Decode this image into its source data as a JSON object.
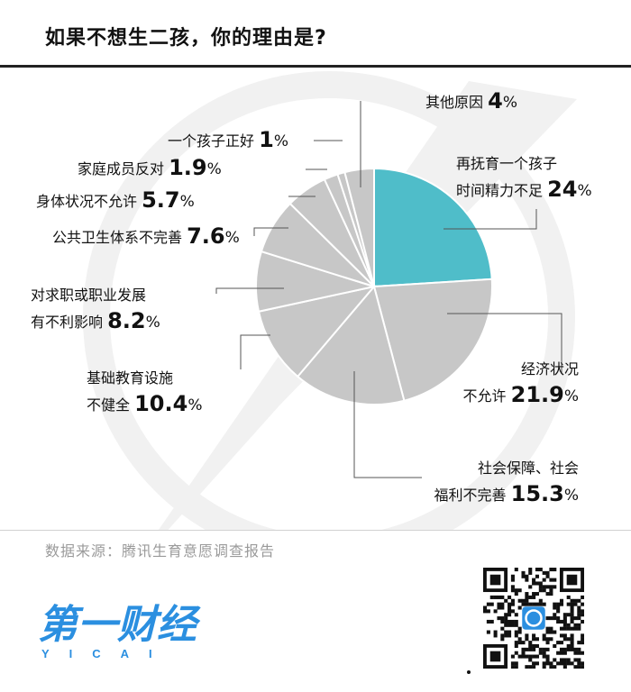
{
  "colors": {
    "highlight": "#4fbdc9",
    "slice": "#c7c7c7",
    "watermark": "#f1f1f1",
    "brand": "#2b8fe0"
  },
  "chart_data": {
    "type": "pie",
    "title": "如果不想生二孩，你的理由是?",
    "source": "数据来源：腾讯生育意愿调查报告",
    "slices": [
      {
        "label_lines": [
          "再抚育一个孩子",
          "时间精力不足"
        ],
        "value": 24,
        "display": "24"
      },
      {
        "label_lines": [
          "经济状况",
          "不允许"
        ],
        "value": 21.9,
        "display": "21.9"
      },
      {
        "label_lines": [
          "社会保障、社会",
          "福利不完善"
        ],
        "value": 15.3,
        "display": "15.3"
      },
      {
        "label_lines": [
          "基础教育设施",
          "不健全"
        ],
        "value": 10.4,
        "display": "10.4"
      },
      {
        "label_lines": [
          "对求职或职业发展",
          "有不利影响"
        ],
        "value": 8.2,
        "display": "8.2"
      },
      {
        "label_lines": [
          "公共卫生体系不完善"
        ],
        "value": 7.6,
        "display": "7.6"
      },
      {
        "label_lines": [
          "身体状况不允许"
        ],
        "value": 5.7,
        "display": "5.7"
      },
      {
        "label_lines": [
          "家庭成员反对"
        ],
        "value": 1.9,
        "display": "1.9"
      },
      {
        "label_lines": [
          "一个孩子正好"
        ],
        "value": 1,
        "display": "1"
      },
      {
        "label_lines": [
          "其他原因"
        ],
        "value": 4,
        "display": "4"
      }
    ]
  },
  "brand": {
    "logo_text": "第一财经",
    "logo_sub": "YICAI"
  }
}
